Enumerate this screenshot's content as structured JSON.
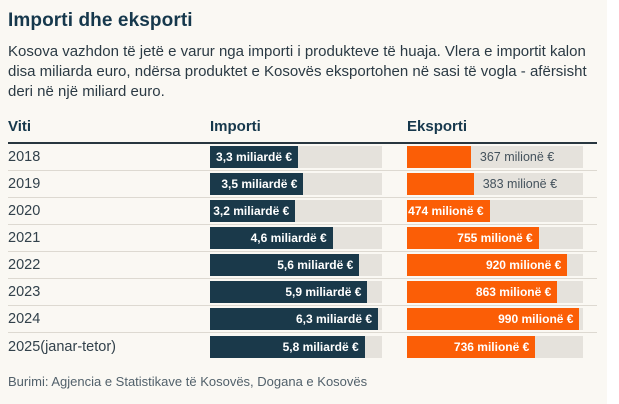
{
  "header": {
    "title": "Importi dhe eksporti",
    "intro": "Kosova vazhdon të jetë e varur nga importi i produkteve të huaja. Vlera e importit kalon disa miliarda euro, ndërsa produktet e Kosovës eksportohen në sasi të vogla - afërsisht deri në një miliard euro."
  },
  "table": {
    "columns": {
      "year": "Viti",
      "import": "Importi",
      "export": "Eksporti"
    },
    "rows": [
      {
        "year": "2018",
        "import_value": 3.3,
        "import_label": "3,3 miliardë €",
        "export_value": 367,
        "export_label": "367 milionë €",
        "export_label_position": "outside"
      },
      {
        "year": "2019",
        "import_value": 3.5,
        "import_label": "3,5 miliardë €",
        "export_value": 383,
        "export_label": "383 milionë €",
        "export_label_position": "outside"
      },
      {
        "year": "2020",
        "import_value": 3.2,
        "import_label": "3,2 miliardë €",
        "export_value": 474,
        "export_label": "474 milionë €",
        "export_label_position": "inside"
      },
      {
        "year": "2021",
        "import_value": 4.6,
        "import_label": "4,6 miliardë €",
        "export_value": 755,
        "export_label": "755 milionë €",
        "export_label_position": "inside"
      },
      {
        "year": "2022",
        "import_value": 5.6,
        "import_label": "5,6 miliardë €",
        "export_value": 920,
        "export_label": "920 milionë €",
        "export_label_position": "inside"
      },
      {
        "year": "2023",
        "import_value": 5.9,
        "import_label": "5,9 miliardë €",
        "export_value": 863,
        "export_label": "863 milionë €",
        "export_label_position": "inside"
      },
      {
        "year": "2024",
        "import_value": 6.3,
        "import_label": "6,3 miliardë €",
        "export_value": 990,
        "export_label": "990 milionë €",
        "export_label_position": "inside"
      },
      {
        "year": "2025(janar-tetor)",
        "import_value": 5.8,
        "import_label": "5,8 miliardë €",
        "export_value": 736,
        "export_label": "736 milionë €",
        "export_label_position": "inside"
      }
    ]
  },
  "footer": {
    "source": "Burimi: Agjencia e Statistikave të Kosovës, Dogana e Kosovës"
  },
  "colors": {
    "card_background": "#faf8f3",
    "import_bar": "#1a394a",
    "export_bar": "#fb5e06",
    "bar_track": "#e5e2dc",
    "heading_ink": "#16384c"
  },
  "chart_data": {
    "type": "bar",
    "orientation": "horizontal",
    "title": "Importi dhe eksporti",
    "categories": [
      "2018",
      "2019",
      "2020",
      "2021",
      "2022",
      "2023",
      "2024",
      "2025(janar-tetor)"
    ],
    "series": [
      {
        "name": "Importi",
        "unit": "miliardë €",
        "values": [
          3.3,
          3.5,
          3.2,
          4.6,
          5.6,
          5.9,
          6.3,
          5.8
        ],
        "axis_max": 6.45
      },
      {
        "name": "Eksporti",
        "unit": "milionë €",
        "values": [
          367,
          383,
          474,
          755,
          920,
          863,
          990,
          736
        ],
        "axis_max": 1010
      }
    ],
    "legend_position": "none",
    "grid": false,
    "source": "Burimi: Agjencia e Statistikave të Kosovës, Dogana e Kosovës"
  }
}
